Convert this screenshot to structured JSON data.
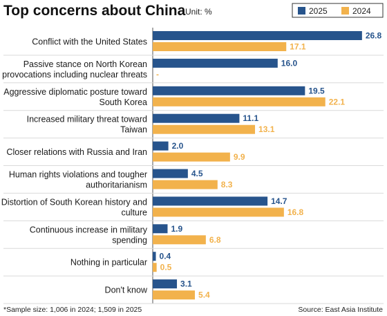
{
  "title": "Top concerns about China",
  "unit": "Unit: %",
  "footnote": "*Sample size: 1,006 in 2024; 1,509 in 2025",
  "source": "Source: East Asia Institute",
  "colors": {
    "2025": "#27548c",
    "2024": "#f2b24c"
  },
  "chart_data": {
    "type": "bar",
    "orientation": "horizontal",
    "categories": [
      "Conflict with the United States",
      "Passive stance on North Korean provocations including nuclear threats",
      "Aggressive diplomatic posture toward South Korea",
      "Increased military threat toward Taiwan",
      "Closer relations with Russia and Iran",
      "Human rights violations and tougher authoritarianism",
      "Distortion of South Korean history and culture",
      "Continuous increase in military spending",
      "Nothing in particular",
      "Don't know"
    ],
    "category_lines": [
      [
        "Conflict with the United States"
      ],
      [
        "Passive stance on North Korean",
        "provocations including nuclear threats"
      ],
      [
        "Aggressive diplomatic posture toward",
        "South Korea"
      ],
      [
        "Increased military threat toward",
        "Taiwan"
      ],
      [
        "Closer relations with Russia and Iran"
      ],
      [
        "Human rights violations and tougher",
        "authoritarianism"
      ],
      [
        "Distortion of South Korean history and",
        "culture"
      ],
      [
        "Continuous increase in military",
        "spending"
      ],
      [
        "Nothing in particular"
      ],
      [
        "Don't know"
      ]
    ],
    "series": [
      {
        "name": "2025",
        "values": [
          26.8,
          16.0,
          19.5,
          11.1,
          2.0,
          4.5,
          14.7,
          1.9,
          0.4,
          3.1
        ],
        "labels": [
          "26.8",
          "16.0",
          "19.5",
          "11.1",
          "2.0",
          "4.5",
          "14.7",
          "1.9",
          "0.4",
          "3.1"
        ]
      },
      {
        "name": "2024",
        "values": [
          17.1,
          null,
          22.1,
          13.1,
          9.9,
          8.3,
          16.8,
          6.8,
          0.5,
          5.4
        ],
        "labels": [
          "17.1",
          "-",
          "22.1",
          "13.1",
          "9.9",
          "8.3",
          "16.8",
          "6.8",
          "0.5",
          "5.4"
        ]
      }
    ],
    "legend_position": "top-right"
  }
}
